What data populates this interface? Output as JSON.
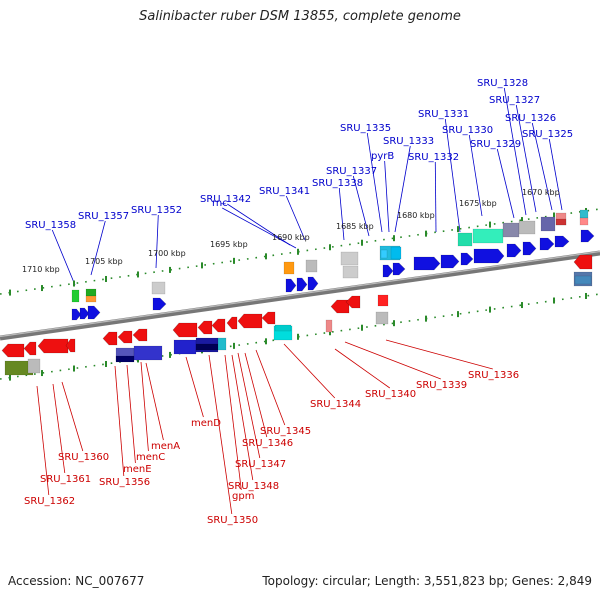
{
  "title": "Salinibacter ruber DSM 13855, complete genome",
  "footer": {
    "accession": "Accession: NC_007677",
    "stats": "Topology: circular; Length: 3,551,823 bp; Genes: 2,849"
  },
  "colors": {
    "forward_label": "#0000cc",
    "reverse_label": "#cc0000",
    "backbone": "#888888",
    "tick": "#2a8a2a"
  },
  "scale_labels": [
    "1710 kbp",
    "1705 kbp",
    "1700 kbp",
    "1695 kbp",
    "1690 kbp",
    "1685 kbp",
    "1680 kbp",
    "1675 kbp",
    "1670 kbp"
  ],
  "forward_genes": [
    "SRU_1358",
    "SRU_1357",
    "SRU_1352",
    "SRU_1342",
    "rnc",
    "SRU_1341",
    "SRU_1338",
    "SRU_1337",
    "SRU_1335",
    "pyrB",
    "SRU_1333",
    "SRU_1332",
    "SRU_1331",
    "SRU_1330",
    "SRU_1329",
    "SRU_1328",
    "SRU_1327",
    "SRU_1326",
    "SRU_1325"
  ],
  "reverse_genes": [
    "SRU_1362",
    "SRU_1361",
    "SRU_1360",
    "SRU_1356",
    "menE",
    "menC",
    "menA",
    "menD",
    "SRU_1350",
    "gpm",
    "SRU_1348",
    "SRU_1347",
    "SRU_1346",
    "SRU_1345",
    "SRU_1344",
    "SRU_1340",
    "SRU_1339",
    "SRU_1336"
  ]
}
